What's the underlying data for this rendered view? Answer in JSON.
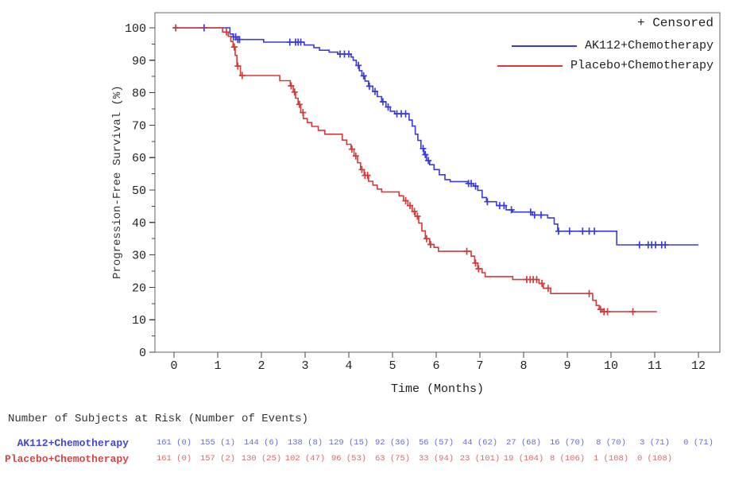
{
  "legend": {
    "censored_label": "+ Censored",
    "position": "top-right"
  },
  "axes": {
    "x_title": "Time (Months)",
    "y_title": "Progression-Free Survival (%)"
  },
  "colors": {
    "ak112_line": "#3a3add",
    "placebo_line": "#d43a3a",
    "ak112_label": "#4545d2",
    "placebo_label": "#d24545",
    "ak112_numbers": "#6b6bd6",
    "placebo_numbers": "#d66b6b",
    "frame": "#666666",
    "tick": "#444444",
    "text": "#222222"
  },
  "chart_data": {
    "type": "line",
    "subtype": "kaplan-meier-step",
    "title": "",
    "xlabel": "Time (Months)",
    "ylabel": "Progression-Free Survival (%)",
    "xlim": [
      0,
      12
    ],
    "ylim": [
      0,
      100
    ],
    "xticks": [
      0,
      1,
      2,
      3,
      4,
      5,
      6,
      7,
      8,
      9,
      10,
      11,
      12
    ],
    "yticks": [
      0,
      10,
      20,
      30,
      40,
      50,
      60,
      70,
      80,
      90,
      100
    ],
    "y_minor_step": 5,
    "grid": false,
    "legend_position": "top-right",
    "censor_marker": "+",
    "series": [
      {
        "name": "AK112+Chemotherapy",
        "color": "#3a3add",
        "steps": [
          [
            0,
            100
          ],
          [
            1.28,
            98.1
          ],
          [
            1.35,
            97.2
          ],
          [
            1.42,
            96.4
          ],
          [
            2.05,
            95.6
          ],
          [
            2.98,
            94.7
          ],
          [
            3.2,
            93.9
          ],
          [
            3.33,
            93.1
          ],
          [
            3.55,
            92.5
          ],
          [
            3.75,
            91.9
          ],
          [
            4.05,
            91.0
          ],
          [
            4.1,
            90.0
          ],
          [
            4.17,
            88.4
          ],
          [
            4.24,
            86.8
          ],
          [
            4.3,
            85.2
          ],
          [
            4.37,
            83.6
          ],
          [
            4.45,
            82.0
          ],
          [
            4.55,
            80.4
          ],
          [
            4.65,
            78.8
          ],
          [
            4.75,
            77.2
          ],
          [
            4.85,
            75.6
          ],
          [
            4.95,
            74.3
          ],
          [
            5.05,
            73.5
          ],
          [
            5.38,
            71.6
          ],
          [
            5.45,
            69.7
          ],
          [
            5.52,
            67.2
          ],
          [
            5.58,
            65.3
          ],
          [
            5.65,
            62.8
          ],
          [
            5.72,
            60.9
          ],
          [
            5.78,
            59.1
          ],
          [
            5.85,
            57.8
          ],
          [
            5.95,
            56.3
          ],
          [
            6.07,
            54.7
          ],
          [
            6.2,
            53.2
          ],
          [
            6.32,
            52.6
          ],
          [
            6.72,
            52.0
          ],
          [
            6.85,
            51.2
          ],
          [
            6.95,
            49.9
          ],
          [
            7.05,
            47.7
          ],
          [
            7.15,
            46.4
          ],
          [
            7.38,
            45.2
          ],
          [
            7.6,
            43.9
          ],
          [
            7.75,
            43.2
          ],
          [
            8.2,
            42.3
          ],
          [
            8.55,
            41.4
          ],
          [
            8.7,
            39.5
          ],
          [
            8.78,
            37.3
          ],
          [
            10.13,
            33.1
          ]
        ],
        "end_t": 12.0,
        "censor_t": [
          0.69,
          1.36,
          1.41,
          1.46,
          1.5,
          2.65,
          2.78,
          2.84,
          2.9,
          3.8,
          3.9,
          4.0,
          4.22,
          4.34,
          4.47,
          4.6,
          4.78,
          4.9,
          5.1,
          5.2,
          5.3,
          5.7,
          5.75,
          5.82,
          6.74,
          6.8,
          6.9,
          7.17,
          7.45,
          7.55,
          7.72,
          8.16,
          8.25,
          8.4,
          8.8,
          9.05,
          9.35,
          9.5,
          9.62,
          10.65,
          10.85,
          10.93,
          11.02,
          11.16,
          11.24
        ]
      },
      {
        "name": "Placebo+Chemotherapy",
        "color": "#d43a3a",
        "steps": [
          [
            0,
            100
          ],
          [
            1.11,
            98.7
          ],
          [
            1.24,
            97.4
          ],
          [
            1.3,
            95.8
          ],
          [
            1.35,
            94.1
          ],
          [
            1.4,
            91.5
          ],
          [
            1.44,
            88.2
          ],
          [
            1.52,
            85.3
          ],
          [
            2.42,
            83.7
          ],
          [
            2.66,
            82.1
          ],
          [
            2.73,
            80.2
          ],
          [
            2.78,
            78.3
          ],
          [
            2.84,
            76.4
          ],
          [
            2.9,
            73.9
          ],
          [
            2.96,
            72.0
          ],
          [
            3.05,
            70.8
          ],
          [
            3.15,
            69.6
          ],
          [
            3.3,
            68.4
          ],
          [
            3.45,
            67.2
          ],
          [
            3.85,
            65.4
          ],
          [
            3.95,
            64.1
          ],
          [
            4.05,
            62.6
          ],
          [
            4.12,
            60.5
          ],
          [
            4.2,
            58.4
          ],
          [
            4.27,
            56.3
          ],
          [
            4.35,
            54.5
          ],
          [
            4.45,
            52.7
          ],
          [
            4.55,
            51.5
          ],
          [
            4.65,
            50.3
          ],
          [
            4.75,
            49.4
          ],
          [
            5.15,
            48.2
          ],
          [
            5.25,
            46.7
          ],
          [
            5.35,
            45.2
          ],
          [
            5.45,
            43.4
          ],
          [
            5.52,
            41.9
          ],
          [
            5.6,
            39.8
          ],
          [
            5.67,
            37.4
          ],
          [
            5.75,
            35.0
          ],
          [
            5.85,
            33.2
          ],
          [
            5.95,
            32.3
          ],
          [
            6.05,
            31.1
          ],
          [
            6.8,
            29.6
          ],
          [
            6.88,
            27.5
          ],
          [
            6.95,
            25.7
          ],
          [
            7.05,
            24.5
          ],
          [
            7.12,
            23.3
          ],
          [
            7.75,
            22.4
          ],
          [
            8.35,
            21.2
          ],
          [
            8.45,
            19.7
          ],
          [
            8.62,
            18.1
          ],
          [
            9.58,
            16.0
          ],
          [
            9.66,
            14.4
          ],
          [
            9.73,
            13.2
          ],
          [
            9.8,
            12.5
          ]
        ],
        "end_t": 11.05,
        "censor_t": [
          0.04,
          1.2,
          1.38,
          1.46,
          1.56,
          2.68,
          2.76,
          2.87,
          2.95,
          4.07,
          4.16,
          4.3,
          4.37,
          4.43,
          5.3,
          5.4,
          5.5,
          5.57,
          5.78,
          5.87,
          6.7,
          6.9,
          6.97,
          8.07,
          8.15,
          8.22,
          8.3,
          8.42,
          8.56,
          9.5,
          9.76,
          9.84,
          9.92,
          10.5
        ]
      }
    ]
  },
  "risk_table": {
    "header": "Number of Subjects at Risk (Number of Events)",
    "months": [
      0,
      1,
      2,
      3,
      4,
      5,
      6,
      7,
      8,
      9,
      10,
      11,
      12
    ],
    "rows": [
      {
        "label": "AK112+Chemotherapy",
        "label_color": "#4545d2",
        "num_color": "#6b6bd6",
        "values": [
          "161 (0)",
          "155 (1)",
          "144 (6)",
          "138 (8)",
          "129 (15)",
          "92 (36)",
          "56 (57)",
          "44 (62)",
          "27 (68)",
          "16 (70)",
          "8 (70)",
          "3 (71)",
          "0 (71)"
        ]
      },
      {
        "label": "Placebo+Chemotherapy",
        "label_color": "#d24545",
        "num_color": "#d66b6b",
        "values": [
          "161 (0)",
          "157 (2)",
          "130 (25)",
          "102 (47)",
          "96 (53)",
          "63 (75)",
          "33 (94)",
          "23 (101)",
          "19 (104)",
          "8 (106)",
          "1 (108)",
          "0 (108)"
        ]
      }
    ]
  }
}
